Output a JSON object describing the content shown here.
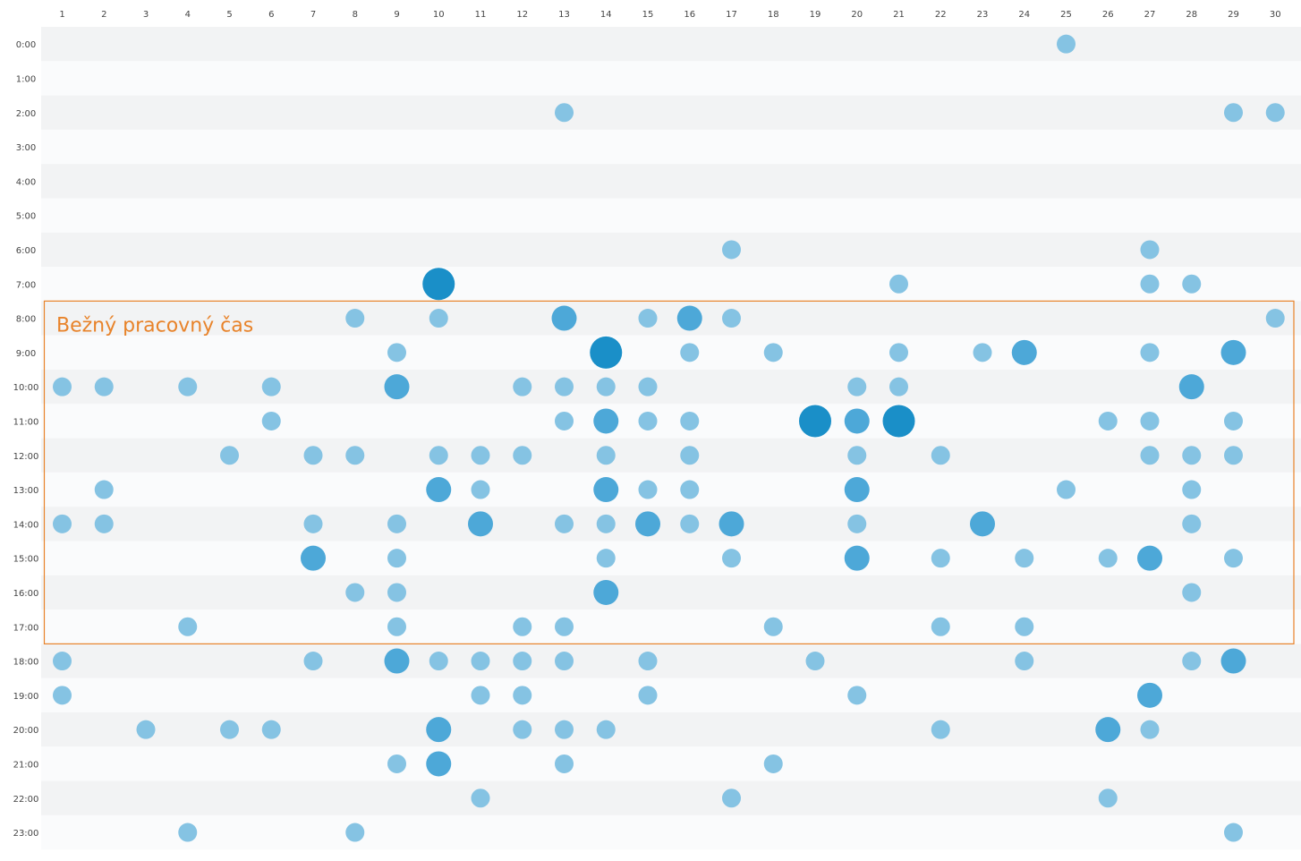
{
  "chart_data": {
    "type": "scatter",
    "title": "",
    "xlabel": "",
    "ylabel": "",
    "x_ticks": [
      "1",
      "2",
      "3",
      "4",
      "5",
      "6",
      "7",
      "8",
      "9",
      "10",
      "11",
      "12",
      "13",
      "14",
      "15",
      "16",
      "17",
      "18",
      "19",
      "20",
      "21",
      "22",
      "23",
      "24",
      "25",
      "26",
      "27",
      "28",
      "29",
      "30"
    ],
    "y_ticks": [
      "0:00",
      "1:00",
      "2:00",
      "3:00",
      "4:00",
      "5:00",
      "6:00",
      "7:00",
      "8:00",
      "9:00",
      "10:00",
      "11:00",
      "12:00",
      "13:00",
      "14:00",
      "15:00",
      "16:00",
      "17:00",
      "18:00",
      "19:00",
      "20:00",
      "21:00",
      "22:00",
      "23:00"
    ],
    "highlight_band": {
      "label": "Bežný pracovný čas",
      "from_hour": 8,
      "to_hour": 17
    },
    "colors": {
      "band": "#e8832a",
      "row_alt": "#f2f3f4",
      "row_base": "#fafbfc",
      "level1": "#85c3e3",
      "level2": "#4da8d8",
      "level3": "#1a8fc8"
    },
    "size_levels": [
      1,
      2,
      3
    ],
    "points": [
      {
        "day": 25,
        "hour": 0,
        "v": 1
      },
      {
        "day": 13,
        "hour": 2,
        "v": 1
      },
      {
        "day": 29,
        "hour": 2,
        "v": 1
      },
      {
        "day": 30,
        "hour": 2,
        "v": 1
      },
      {
        "day": 17,
        "hour": 6,
        "v": 1
      },
      {
        "day": 27,
        "hour": 6,
        "v": 1
      },
      {
        "day": 10,
        "hour": 7,
        "v": 3
      },
      {
        "day": 21,
        "hour": 7,
        "v": 1
      },
      {
        "day": 27,
        "hour": 7,
        "v": 1
      },
      {
        "day": 28,
        "hour": 7,
        "v": 1
      },
      {
        "day": 8,
        "hour": 8,
        "v": 1
      },
      {
        "day": 10,
        "hour": 8,
        "v": 1
      },
      {
        "day": 13,
        "hour": 8,
        "v": 2
      },
      {
        "day": 15,
        "hour": 8,
        "v": 1
      },
      {
        "day": 16,
        "hour": 8,
        "v": 2
      },
      {
        "day": 17,
        "hour": 8,
        "v": 1
      },
      {
        "day": 30,
        "hour": 8,
        "v": 1
      },
      {
        "day": 9,
        "hour": 9,
        "v": 1
      },
      {
        "day": 14,
        "hour": 9,
        "v": 3
      },
      {
        "day": 16,
        "hour": 9,
        "v": 1
      },
      {
        "day": 18,
        "hour": 9,
        "v": 1
      },
      {
        "day": 21,
        "hour": 9,
        "v": 1
      },
      {
        "day": 23,
        "hour": 9,
        "v": 1
      },
      {
        "day": 24,
        "hour": 9,
        "v": 2
      },
      {
        "day": 27,
        "hour": 9,
        "v": 1
      },
      {
        "day": 29,
        "hour": 9,
        "v": 2
      },
      {
        "day": 1,
        "hour": 10,
        "v": 1
      },
      {
        "day": 2,
        "hour": 10,
        "v": 1
      },
      {
        "day": 4,
        "hour": 10,
        "v": 1
      },
      {
        "day": 6,
        "hour": 10,
        "v": 1
      },
      {
        "day": 9,
        "hour": 10,
        "v": 2
      },
      {
        "day": 12,
        "hour": 10,
        "v": 1
      },
      {
        "day": 13,
        "hour": 10,
        "v": 1
      },
      {
        "day": 14,
        "hour": 10,
        "v": 1
      },
      {
        "day": 15,
        "hour": 10,
        "v": 1
      },
      {
        "day": 20,
        "hour": 10,
        "v": 1
      },
      {
        "day": 21,
        "hour": 10,
        "v": 1
      },
      {
        "day": 28,
        "hour": 10,
        "v": 2
      },
      {
        "day": 6,
        "hour": 11,
        "v": 1
      },
      {
        "day": 13,
        "hour": 11,
        "v": 1
      },
      {
        "day": 14,
        "hour": 11,
        "v": 2
      },
      {
        "day": 15,
        "hour": 11,
        "v": 1
      },
      {
        "day": 16,
        "hour": 11,
        "v": 1
      },
      {
        "day": 19,
        "hour": 11,
        "v": 3
      },
      {
        "day": 20,
        "hour": 11,
        "v": 2
      },
      {
        "day": 21,
        "hour": 11,
        "v": 3
      },
      {
        "day": 26,
        "hour": 11,
        "v": 1
      },
      {
        "day": 27,
        "hour": 11,
        "v": 1
      },
      {
        "day": 29,
        "hour": 11,
        "v": 1
      },
      {
        "day": 5,
        "hour": 12,
        "v": 1
      },
      {
        "day": 7,
        "hour": 12,
        "v": 1
      },
      {
        "day": 8,
        "hour": 12,
        "v": 1
      },
      {
        "day": 10,
        "hour": 12,
        "v": 1
      },
      {
        "day": 11,
        "hour": 12,
        "v": 1
      },
      {
        "day": 12,
        "hour": 12,
        "v": 1
      },
      {
        "day": 14,
        "hour": 12,
        "v": 1
      },
      {
        "day": 16,
        "hour": 12,
        "v": 1
      },
      {
        "day": 20,
        "hour": 12,
        "v": 1
      },
      {
        "day": 22,
        "hour": 12,
        "v": 1
      },
      {
        "day": 27,
        "hour": 12,
        "v": 1
      },
      {
        "day": 28,
        "hour": 12,
        "v": 1
      },
      {
        "day": 29,
        "hour": 12,
        "v": 1
      },
      {
        "day": 2,
        "hour": 13,
        "v": 1
      },
      {
        "day": 10,
        "hour": 13,
        "v": 2
      },
      {
        "day": 11,
        "hour": 13,
        "v": 1
      },
      {
        "day": 14,
        "hour": 13,
        "v": 2
      },
      {
        "day": 15,
        "hour": 13,
        "v": 1
      },
      {
        "day": 16,
        "hour": 13,
        "v": 1
      },
      {
        "day": 20,
        "hour": 13,
        "v": 2
      },
      {
        "day": 25,
        "hour": 13,
        "v": 1
      },
      {
        "day": 28,
        "hour": 13,
        "v": 1
      },
      {
        "day": 1,
        "hour": 14,
        "v": 1
      },
      {
        "day": 2,
        "hour": 14,
        "v": 1
      },
      {
        "day": 7,
        "hour": 14,
        "v": 1
      },
      {
        "day": 9,
        "hour": 14,
        "v": 1
      },
      {
        "day": 11,
        "hour": 14,
        "v": 2
      },
      {
        "day": 13,
        "hour": 14,
        "v": 1
      },
      {
        "day": 14,
        "hour": 14,
        "v": 1
      },
      {
        "day": 15,
        "hour": 14,
        "v": 2
      },
      {
        "day": 16,
        "hour": 14,
        "v": 1
      },
      {
        "day": 17,
        "hour": 14,
        "v": 2
      },
      {
        "day": 20,
        "hour": 14,
        "v": 1
      },
      {
        "day": 23,
        "hour": 14,
        "v": 2
      },
      {
        "day": 28,
        "hour": 14,
        "v": 1
      },
      {
        "day": 7,
        "hour": 15,
        "v": 2
      },
      {
        "day": 9,
        "hour": 15,
        "v": 1
      },
      {
        "day": 14,
        "hour": 15,
        "v": 1
      },
      {
        "day": 17,
        "hour": 15,
        "v": 1
      },
      {
        "day": 20,
        "hour": 15,
        "v": 2
      },
      {
        "day": 22,
        "hour": 15,
        "v": 1
      },
      {
        "day": 24,
        "hour": 15,
        "v": 1
      },
      {
        "day": 26,
        "hour": 15,
        "v": 1
      },
      {
        "day": 27,
        "hour": 15,
        "v": 2
      },
      {
        "day": 29,
        "hour": 15,
        "v": 1
      },
      {
        "day": 8,
        "hour": 16,
        "v": 1
      },
      {
        "day": 9,
        "hour": 16,
        "v": 1
      },
      {
        "day": 14,
        "hour": 16,
        "v": 2
      },
      {
        "day": 28,
        "hour": 16,
        "v": 1
      },
      {
        "day": 4,
        "hour": 17,
        "v": 1
      },
      {
        "day": 9,
        "hour": 17,
        "v": 1
      },
      {
        "day": 12,
        "hour": 17,
        "v": 1
      },
      {
        "day": 13,
        "hour": 17,
        "v": 1
      },
      {
        "day": 18,
        "hour": 17,
        "v": 1
      },
      {
        "day": 22,
        "hour": 17,
        "v": 1
      },
      {
        "day": 24,
        "hour": 17,
        "v": 1
      },
      {
        "day": 1,
        "hour": 18,
        "v": 1
      },
      {
        "day": 7,
        "hour": 18,
        "v": 1
      },
      {
        "day": 9,
        "hour": 18,
        "v": 2
      },
      {
        "day": 10,
        "hour": 18,
        "v": 1
      },
      {
        "day": 11,
        "hour": 18,
        "v": 1
      },
      {
        "day": 12,
        "hour": 18,
        "v": 1
      },
      {
        "day": 13,
        "hour": 18,
        "v": 1
      },
      {
        "day": 15,
        "hour": 18,
        "v": 1
      },
      {
        "day": 19,
        "hour": 18,
        "v": 1
      },
      {
        "day": 24,
        "hour": 18,
        "v": 1
      },
      {
        "day": 28,
        "hour": 18,
        "v": 1
      },
      {
        "day": 29,
        "hour": 18,
        "v": 2
      },
      {
        "day": 1,
        "hour": 19,
        "v": 1
      },
      {
        "day": 11,
        "hour": 19,
        "v": 1
      },
      {
        "day": 12,
        "hour": 19,
        "v": 1
      },
      {
        "day": 15,
        "hour": 19,
        "v": 1
      },
      {
        "day": 20,
        "hour": 19,
        "v": 1
      },
      {
        "day": 27,
        "hour": 19,
        "v": 2
      },
      {
        "day": 3,
        "hour": 20,
        "v": 1
      },
      {
        "day": 5,
        "hour": 20,
        "v": 1
      },
      {
        "day": 6,
        "hour": 20,
        "v": 1
      },
      {
        "day": 10,
        "hour": 20,
        "v": 2
      },
      {
        "day": 12,
        "hour": 20,
        "v": 1
      },
      {
        "day": 13,
        "hour": 20,
        "v": 1
      },
      {
        "day": 14,
        "hour": 20,
        "v": 1
      },
      {
        "day": 22,
        "hour": 20,
        "v": 1
      },
      {
        "day": 26,
        "hour": 20,
        "v": 2
      },
      {
        "day": 27,
        "hour": 20,
        "v": 1
      },
      {
        "day": 9,
        "hour": 21,
        "v": 1
      },
      {
        "day": 10,
        "hour": 21,
        "v": 2
      },
      {
        "day": 13,
        "hour": 21,
        "v": 1
      },
      {
        "day": 18,
        "hour": 21,
        "v": 1
      },
      {
        "day": 11,
        "hour": 22,
        "v": 1
      },
      {
        "day": 17,
        "hour": 22,
        "v": 1
      },
      {
        "day": 26,
        "hour": 22,
        "v": 1
      },
      {
        "day": 4,
        "hour": 23,
        "v": 1
      },
      {
        "day": 8,
        "hour": 23,
        "v": 1
      },
      {
        "day": 29,
        "hour": 23,
        "v": 1
      }
    ]
  }
}
